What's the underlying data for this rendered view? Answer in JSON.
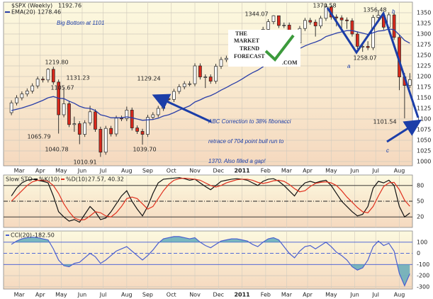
{
  "chart_data": [
    {
      "type": "candlestick",
      "title": "$SPX (Weekly)",
      "readout": "1192.76",
      "up_color": "#ffffff",
      "down_color": "#d8291c",
      "open": [
        1115,
        1138,
        1150,
        1159,
        1166,
        1178,
        1194,
        1192,
        1217,
        1187,
        1110,
        1136,
        1087,
        1089,
        1064,
        1091,
        1117,
        1076,
        1022,
        1078,
        1065,
        1102,
        1101,
        1121,
        1079,
        1071,
        1064,
        1104,
        1110,
        1125,
        1148,
        1146,
        1165,
        1176,
        1183,
        1183,
        1225,
        1199,
        1199,
        1189,
        1224,
        1240,
        1243,
        1256,
        1258,
        1271,
        1293,
        1283,
        1276,
        1311,
        1329,
        1343,
        1320,
        1321,
        1304,
        1279,
        1313,
        1332,
        1328,
        1319,
        1337,
        1364,
        1340,
        1338,
        1333,
        1331,
        1300,
        1271,
        1271,
        1268,
        1339,
        1344,
        1316,
        1345,
        1292,
        1199,
        1179
      ],
      "high": [
        1144,
        1156,
        1165,
        1172,
        1184,
        1200,
        1200,
        1219.8,
        1223,
        1193,
        1173,
        1142,
        1105.67,
        1095,
        1097,
        1131.23,
        1123,
        1082,
        1084,
        1084,
        1108,
        1108,
        1129.24,
        1127,
        1085,
        1077,
        1110,
        1116,
        1131,
        1154,
        1154,
        1171,
        1182,
        1189,
        1189,
        1231,
        1231,
        1205,
        1205,
        1230,
        1246,
        1249,
        1262,
        1264,
        1277,
        1299,
        1299,
        1289,
        1317,
        1335,
        1344.07,
        1343,
        1327,
        1327,
        1310,
        1319,
        1338,
        1338,
        1334,
        1343,
        1370.58,
        1366,
        1346,
        1344,
        1339,
        1337,
        1306,
        1280,
        1283,
        1345,
        1356.48,
        1350,
        1351,
        1350,
        1298,
        1208,
        1208
      ],
      "low": [
        1109,
        1132,
        1144,
        1153,
        1160,
        1172,
        1186,
        1186,
        1181,
        1065.79,
        1104,
        1081,
        1070,
        1040.78,
        1058,
        1085,
        1070,
        1010.91,
        1016,
        1059,
        1059,
        1095,
        1095,
        1073,
        1065,
        1039.7,
        1058,
        1098,
        1104,
        1119,
        1140,
        1140,
        1159,
        1170,
        1177,
        1177,
        1193,
        1173,
        1183,
        1183,
        1218,
        1234,
        1237,
        1250,
        1252,
        1265,
        1277,
        1270,
        1270,
        1305,
        1323,
        1314,
        1314,
        1298,
        1256,
        1273,
        1307,
        1322,
        1294,
        1313,
        1331,
        1334,
        1318,
        1311,
        1312,
        1294,
        1265,
        1258.07,
        1262,
        1262,
        1333,
        1310,
        1310,
        1286,
        1168,
        1101.54,
        1173
      ],
      "close": [
        1138,
        1150,
        1159,
        1166,
        1178,
        1194,
        1192,
        1217,
        1187,
        1110,
        1136,
        1087,
        1089,
        1064,
        1091,
        1117,
        1076,
        1022,
        1078,
        1065,
        1102,
        1101,
        1121,
        1079,
        1071,
        1064,
        1104,
        1110,
        1125,
        1148,
        1146,
        1165,
        1176,
        1183,
        1183,
        1225,
        1199,
        1199,
        1189,
        1224,
        1240,
        1243,
        1256,
        1258,
        1271,
        1293,
        1283,
        1276,
        1311,
        1329,
        1343,
        1320,
        1321,
        1304,
        1279,
        1313,
        1332,
        1328,
        1319,
        1337,
        1364,
        1340,
        1338,
        1333,
        1331,
        1300,
        1271,
        1271,
        1268,
        1339,
        1344,
        1316,
        1345,
        1292,
        1199,
        1179,
        1192.76
      ],
      "series": [
        {
          "name": "EMA(20)",
          "readout": "1278.46",
          "color": "#2b3fa8",
          "values": [
            1120,
            1123,
            1126,
            1130,
            1134,
            1139,
            1144,
            1150,
            1153,
            1149,
            1148,
            1142,
            1137,
            1130,
            1126,
            1125,
            1120,
            1110,
            1107,
            1103,
            1103,
            1103,
            1105,
            1103,
            1100,
            1097,
            1098,
            1099,
            1102,
            1107,
            1110,
            1115,
            1121,
            1126,
            1131,
            1140,
            1145,
            1151,
            1155,
            1161,
            1168,
            1174,
            1181,
            1187,
            1194,
            1202,
            1209,
            1215,
            1223,
            1232,
            1241,
            1248,
            1254,
            1259,
            1261,
            1266,
            1272,
            1277,
            1281,
            1286,
            1294,
            1298,
            1302,
            1305,
            1308,
            1308,
            1305,
            1302,
            1299,
            1303,
            1307,
            1308,
            1312,
            1310,
            1298,
            1285,
            1278.46
          ]
        }
      ],
      "xlim": [
        -1.5,
        76.5
      ],
      "ylim": [
        990,
        1375
      ],
      "yticks": [
        1000,
        1025,
        1050,
        1075,
        1100,
        1125,
        1150,
        1175,
        1200,
        1225,
        1250,
        1275,
        1300,
        1325,
        1350
      ],
      "xticks": [
        {
          "value": 1.5,
          "label": "Mar"
        },
        {
          "value": 5.5,
          "label": "Apr"
        },
        {
          "value": 9.5,
          "label": "May"
        },
        {
          "value": 13.5,
          "label": "Jun"
        },
        {
          "value": 17.5,
          "label": "Jul"
        },
        {
          "value": 22,
          "label": "Aug"
        },
        {
          "value": 26,
          "label": "Sep"
        },
        {
          "value": 30.5,
          "label": "Oct"
        },
        {
          "value": 35,
          "label": "Nov"
        },
        {
          "value": 39.5,
          "label": "Dec"
        },
        {
          "value": 44,
          "label": "2011"
        },
        {
          "value": 48.5,
          "label": "Feb"
        },
        {
          "value": 52.5,
          "label": "Mar"
        },
        {
          "value": 56.5,
          "label": "Apr"
        },
        {
          "value": 61,
          "label": "May"
        },
        {
          "value": 65.5,
          "label": "Jun"
        },
        {
          "value": 69.5,
          "label": "Jul"
        },
        {
          "value": 74,
          "label": "Aug"
        }
      ],
      "grid": true,
      "price_labels": [
        "1219.80",
        "1065.79",
        "1105.67",
        "1131.23",
        "1040.78",
        "1010.91",
        "1129.24",
        "1039.70",
        "1344.07",
        "1370.58",
        "1258.07",
        "1356.48",
        "1101.54"
      ],
      "annotations": [
        "Big Bottom at 1101",
        "ABC Correction to 38% fibonacci",
        "retrace of 704 point bull run to",
        "1370. Also filled a gap!",
        "a",
        "b",
        "c"
      ],
      "logo": [
        "THE",
        "MARKET",
        "TREND",
        "FORECAST",
        ".COM"
      ]
    },
    {
      "type": "line",
      "title": "Slow STO",
      "readout": "27.57, 40.32",
      "series": [
        {
          "name": "%K(10)",
          "color": "#111111",
          "values": [
            60,
            75,
            85,
            90,
            92,
            90,
            88,
            85,
            60,
            30,
            20,
            12,
            15,
            10,
            25,
            40,
            30,
            15,
            18,
            30,
            45,
            60,
            70,
            50,
            35,
            22,
            40,
            65,
            85,
            92,
            93,
            94,
            95,
            93,
            90,
            92,
            85,
            78,
            72,
            80,
            88,
            90,
            92,
            93,
            92,
            90,
            85,
            80,
            88,
            92,
            93,
            88,
            80,
            70,
            60,
            75,
            85,
            88,
            85,
            88,
            90,
            80,
            65,
            50,
            40,
            30,
            22,
            25,
            40,
            75,
            88,
            85,
            90,
            80,
            40,
            20,
            27.57
          ]
        },
        {
          "name": "%D(10)",
          "color": "#e0301e",
          "values": [
            50,
            60,
            70,
            80,
            87,
            90,
            90,
            88,
            80,
            65,
            45,
            30,
            18,
            14,
            15,
            22,
            30,
            28,
            22,
            20,
            28,
            40,
            55,
            58,
            55,
            45,
            35,
            40,
            55,
            70,
            82,
            90,
            93,
            94,
            93,
            92,
            90,
            85,
            80,
            77,
            80,
            85,
            88,
            91,
            92,
            92,
            90,
            86,
            84,
            86,
            89,
            90,
            88,
            82,
            74,
            68,
            70,
            78,
            84,
            86,
            87,
            85,
            80,
            70,
            58,
            48,
            38,
            30,
            28,
            40,
            60,
            78,
            85,
            86,
            72,
            52,
            40.32
          ]
        }
      ],
      "xlim": [
        -1.5,
        76.5
      ],
      "ylim": [
        0,
        100
      ],
      "yticks": [
        20,
        50,
        80
      ]
    },
    {
      "type": "line",
      "readout": "-182.50",
      "fill_color": "#5aa7b8",
      "series": [
        {
          "name": "CCI(20)",
          "color": "#4a5fd0",
          "values": [
            80,
            110,
            130,
            140,
            145,
            140,
            130,
            120,
            40,
            -60,
            -110,
            -120,
            -90,
            -80,
            -40,
            0,
            -30,
            -90,
            -60,
            -20,
            20,
            40,
            60,
            20,
            -20,
            -60,
            -20,
            30,
            90,
            130,
            140,
            150,
            150,
            140,
            130,
            140,
            100,
            70,
            50,
            80,
            110,
            120,
            130,
            130,
            120,
            110,
            80,
            60,
            100,
            130,
            140,
            120,
            60,
            0,
            -40,
            20,
            60,
            70,
            40,
            70,
            100,
            60,
            10,
            -20,
            -60,
            -120,
            -150,
            -130,
            -60,
            60,
            110,
            70,
            90,
            20,
            -180,
            -290,
            -182.5
          ]
        }
      ],
      "xlim": [
        -1.5,
        76.5
      ],
      "ylim": [
        -320,
        200
      ],
      "yticks": [
        -300,
        -200,
        -100,
        0,
        100
      ],
      "xticks": [
        {
          "value": 1.5,
          "label": "Mar"
        },
        {
          "value": 5.5,
          "label": "Apr"
        },
        {
          "value": 9.5,
          "label": "May"
        },
        {
          "value": 13.5,
          "label": "Jun"
        },
        {
          "value": 17.5,
          "label": "Jul"
        },
        {
          "value": 22,
          "label": "Aug"
        },
        {
          "value": 26,
          "label": "Sep"
        },
        {
          "value": 30.5,
          "label": "Oct"
        },
        {
          "value": 35,
          "label": "Nov"
        },
        {
          "value": 39.5,
          "label": "Dec"
        },
        {
          "value": 44,
          "label": "2011"
        },
        {
          "value": 48.5,
          "label": "Feb"
        },
        {
          "value": 52.5,
          "label": "Mar"
        },
        {
          "value": 56.5,
          "label": "Apr"
        },
        {
          "value": 61,
          "label": "May"
        },
        {
          "value": 65.5,
          "label": "Jun"
        },
        {
          "value": 69.5,
          "label": "Jul"
        },
        {
          "value": 74,
          "label": "Aug"
        }
      ]
    }
  ]
}
